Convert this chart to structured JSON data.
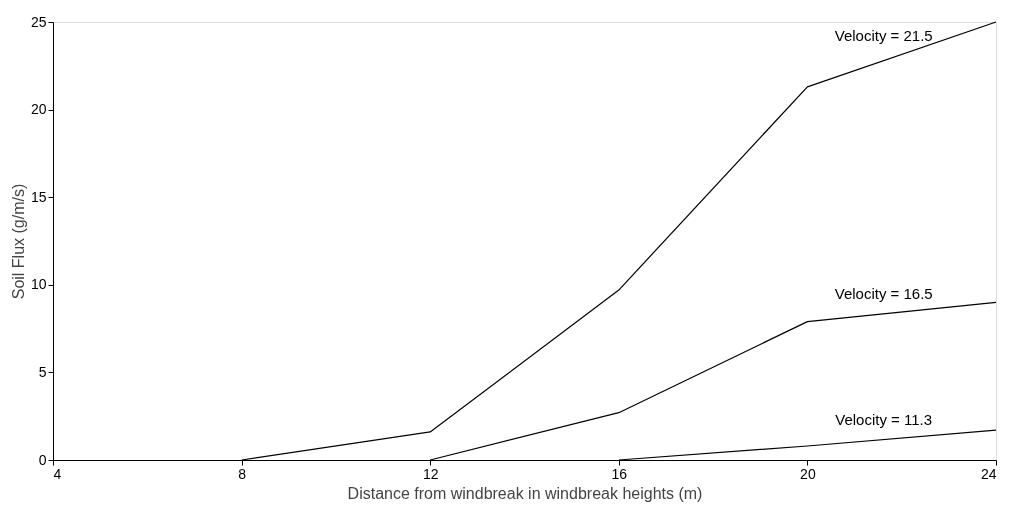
{
  "chart_data": {
    "type": "line",
    "xlabel": "Distance from windbreak in windbreak heights (m)",
    "ylabel": "Soil Flux (g/m/s)",
    "xlim": [
      4,
      24
    ],
    "xticks": [
      4,
      8,
      12,
      16,
      20,
      24
    ],
    "ylim": [
      0,
      25
    ],
    "yticks": [
      0,
      5,
      10,
      15,
      20,
      25
    ],
    "grid": false,
    "legend": false,
    "marker": "none",
    "line_style": "solid",
    "series": [
      {
        "name": "Velocity = 21.5",
        "color": "#000000",
        "x": [
          8,
          12,
          16,
          20,
          24
        ],
        "values": [
          0,
          1.6,
          9.7,
          21.3,
          25
        ]
      },
      {
        "name": "Velocity = 16.5",
        "color": "#000000",
        "x": [
          12,
          16,
          20,
          24
        ],
        "values": [
          0,
          2.7,
          7.9,
          9.0
        ]
      },
      {
        "name": "Velocity = 11.3",
        "color": "#000000",
        "x": [
          16,
          20,
          24
        ],
        "values": [
          0,
          0.8,
          1.7
        ]
      }
    ]
  }
}
